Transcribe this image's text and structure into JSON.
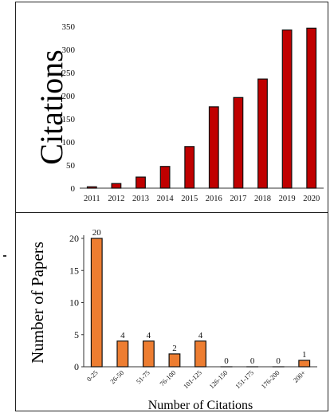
{
  "chart_data": [
    {
      "type": "bar",
      "ylabel": "Citations",
      "xlabel": "",
      "categories": [
        "2011",
        "2012",
        "2013",
        "2014",
        "2015",
        "2016",
        "2017",
        "2018",
        "2019",
        "2020"
      ],
      "values": [
        3,
        10,
        24,
        47,
        90,
        176,
        196,
        236,
        342,
        346
      ],
      "ylim": [
        0,
        350
      ],
      "yticks": [
        "0",
        "50",
        "100",
        "150",
        "200",
        "250",
        "300",
        "350"
      ],
      "bar_color": "#c00000",
      "data_labels": false,
      "grid": false
    },
    {
      "type": "bar",
      "ylabel": "Number of Papers",
      "xlabel": "Number of Citations",
      "categories": [
        "0-25",
        "26-50",
        "51-75",
        "76-100",
        "101-125",
        "126-150",
        "151-175",
        "176-200",
        "200+"
      ],
      "values": [
        20,
        4,
        4,
        2,
        4,
        0,
        0,
        0,
        1
      ],
      "data_labels_text": [
        "20",
        "4",
        "4",
        "2",
        "4",
        "0",
        "0",
        "0",
        "1"
      ],
      "ylim": [
        0,
        20
      ],
      "yticks": [
        "0",
        "5",
        "10",
        "15",
        "20"
      ],
      "bar_color": "#ed7d31",
      "data_labels": true,
      "grid": false
    }
  ]
}
